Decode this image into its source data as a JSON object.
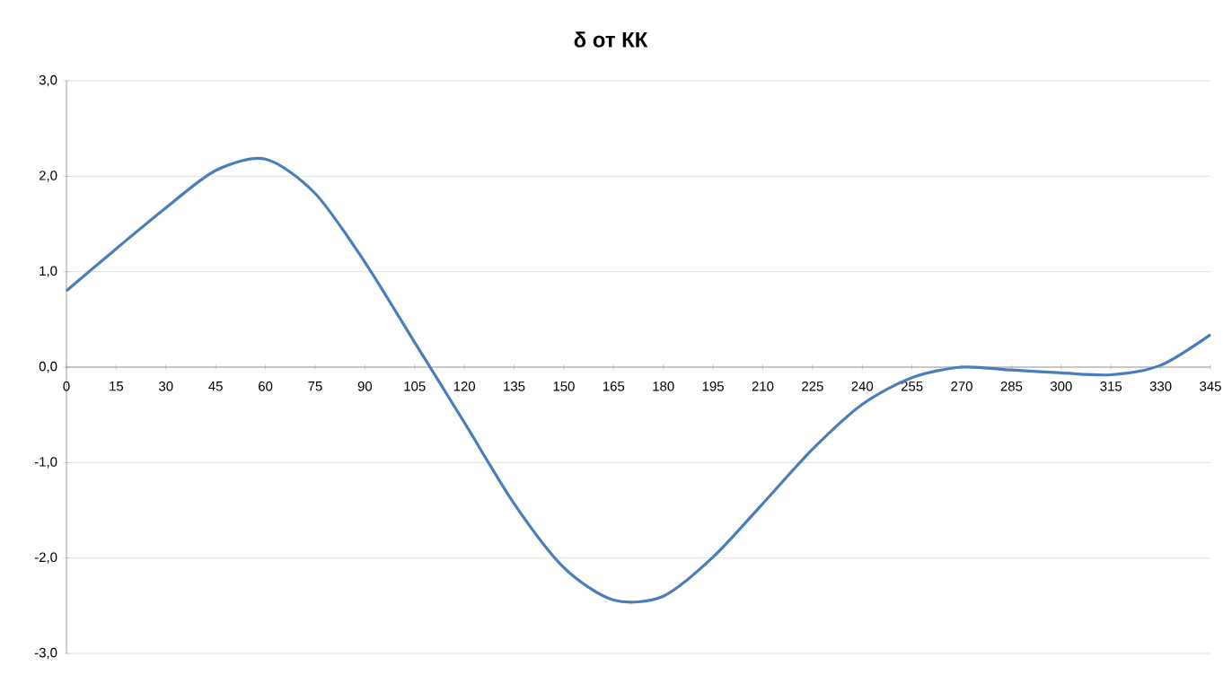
{
  "chart_data": {
    "type": "line",
    "title": "δ от КК",
    "categories": [
      "0",
      "15",
      "30",
      "45",
      "60",
      "75",
      "90",
      "105",
      "120",
      "135",
      "150",
      "165",
      "180",
      "195",
      "210",
      "225",
      "240",
      "255",
      "270",
      "285",
      "300",
      "315",
      "330",
      "345"
    ],
    "series": [
      {
        "color": "#4a7ebb",
        "values": [
          0.8,
          1.24,
          1.67,
          2.06,
          2.18,
          1.82,
          1.1,
          0.26,
          -0.58,
          -1.43,
          -2.1,
          -2.44,
          -2.4,
          -1.99,
          -1.43,
          -0.86,
          -0.39,
          -0.11,
          0.0,
          -0.03,
          -0.06,
          -0.08,
          0.02,
          0.34
        ]
      }
    ],
    "ylim": [
      -3,
      3
    ],
    "yticks": [
      {
        "value": -3,
        "label": "-3,0"
      },
      {
        "value": -2,
        "label": "-2,0"
      },
      {
        "value": -1,
        "label": "-1,0"
      },
      {
        "value": 0,
        "label": "0,0"
      },
      {
        "value": 1,
        "label": "1,0"
      },
      {
        "value": 2,
        "label": "2,0"
      },
      {
        "value": 3,
        "label": "3,0"
      }
    ],
    "grid": "y",
    "marker": "none",
    "line_style": "solid"
  }
}
